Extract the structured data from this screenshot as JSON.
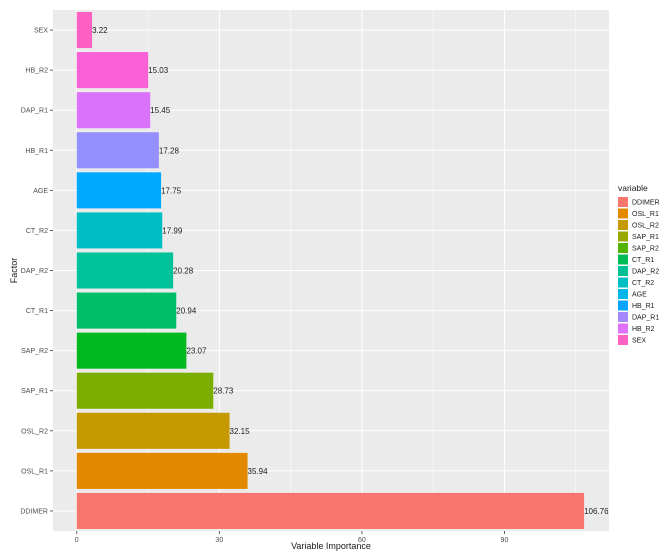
{
  "chart_data": {
    "type": "bar",
    "orientation": "horizontal",
    "title": "",
    "xlabel": "Variable Importance",
    "ylabel": "Factor",
    "xlim": [
      -5,
      112
    ],
    "x_ticks": [
      0,
      30,
      60,
      90
    ],
    "grid": true,
    "legend_title": "variable",
    "legend_position": "right",
    "categories": [
      "SEX",
      "HB_R2",
      "DAP_R1",
      "HB_R1",
      "AGE",
      "CT_R2",
      "DAP_R2",
      "CT_R1",
      "SAP_R2",
      "SAP_R1",
      "OSL_R2",
      "OSL_R1",
      "DDIMER"
    ],
    "values": [
      3.22,
      15.03,
      15.45,
      17.28,
      17.75,
      17.99,
      20.28,
      20.94,
      23.07,
      28.73,
      32.15,
      35.94,
      106.76
    ],
    "value_labels": [
      "3.22",
      "15.03",
      "15.45",
      "17.28",
      "17.75",
      "17.99",
      "20.28",
      "20.94",
      "23.07",
      "28.73",
      "32.15",
      "35.94",
      "106.76"
    ],
    "colors": [
      "#FF61C3",
      "#FB61D7",
      "#DB72FB",
      "#9590FF",
      "#00A9FF",
      "#00BFC4",
      "#00C19A",
      "#00BE67",
      "#00B81F",
      "#7CAE00",
      "#C49A00",
      "#E38900",
      "#F8766D"
    ],
    "legend": [
      {
        "label": "DDIMER",
        "color": "#F8766D"
      },
      {
        "label": "OSL_R1",
        "color": "#E38900"
      },
      {
        "label": "OSL_R2",
        "color": "#C49A00"
      },
      {
        "label": "SAP_R1",
        "color": "#99A800"
      },
      {
        "label": "SAP_R2",
        "color": "#53B400"
      },
      {
        "label": "CT_R1",
        "color": "#00BC56"
      },
      {
        "label": "DAP_R2",
        "color": "#00C094"
      },
      {
        "label": "CT_R2",
        "color": "#00BFC4"
      },
      {
        "label": "AGE",
        "color": "#00B6EB"
      },
      {
        "label": "HB_R1",
        "color": "#06A4FF"
      },
      {
        "label": "DAP_R1",
        "color": "#A58AFF"
      },
      {
        "label": "HB_R2",
        "color": "#DF70F8"
      },
      {
        "label": "SEX",
        "color": "#FF61C3"
      }
    ],
    "panel_background": "#EBEBEB",
    "grid_color": "#FFFFFF"
  }
}
